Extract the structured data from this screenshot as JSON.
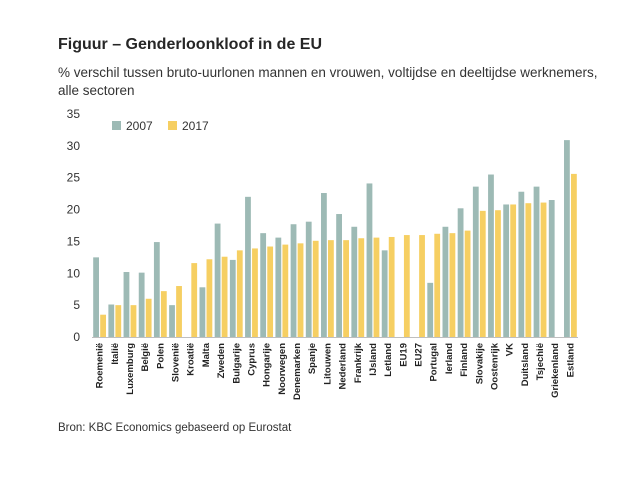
{
  "title": "Figuur – Genderloonkloof in de EU",
  "subtitle": "% verschil tussen bruto-uurlonen mannen en vrouwen, voltijdse en deeltijdse werknemers, alle sectoren",
  "source": "Bron: KBC Economics gebaseerd op Eurostat",
  "colors": {
    "s2007": "#9dbab5",
    "s2017": "#f6cf62",
    "axis": "#bfbfbf"
  },
  "chart_data": {
    "type": "bar",
    "title": "Figuur – Genderloonkloof in de EU",
    "ylim": [
      0,
      35
    ],
    "yticks": [
      0,
      5,
      10,
      15,
      20,
      25,
      30,
      35
    ],
    "grid": false,
    "legend_position": "top-left",
    "categories": [
      "Roemenië",
      "Italië",
      "Luxemburg",
      "België",
      "Polen",
      "Slovenië",
      "Kroatië",
      "Malta",
      "Zweden",
      "Bulgarije",
      "Cyprus",
      "Hongarije",
      "Noorwegen",
      "Denemarken",
      "Spanje",
      "Litouwen",
      "Nederland",
      "Frankrijk",
      "IJsland",
      "Letland",
      "EU19",
      "EU27",
      "Portugal",
      "Ierland",
      "Finland",
      "Slovakije",
      "Oostenrijk",
      "VK",
      "Duitsland",
      "Tsjechië",
      "Griekenland",
      "Estland"
    ],
    "series": [
      {
        "name": "2007",
        "values": [
          12.5,
          5.1,
          10.2,
          10.1,
          14.9,
          5.0,
          null,
          7.8,
          17.8,
          12.1,
          22.0,
          16.3,
          15.6,
          17.7,
          18.1,
          22.6,
          19.3,
          17.3,
          24.1,
          13.6,
          null,
          null,
          8.5,
          17.3,
          20.2,
          23.6,
          25.5,
          20.8,
          22.8,
          23.6,
          21.5,
          30.9
        ]
      },
      {
        "name": "2017",
        "values": [
          3.5,
          5.0,
          5.0,
          6.0,
          7.2,
          8.0,
          11.6,
          12.2,
          12.6,
          13.6,
          13.9,
          14.2,
          14.5,
          14.7,
          15.1,
          15.2,
          15.2,
          15.5,
          15.6,
          15.7,
          16.0,
          16.0,
          16.2,
          16.3,
          16.7,
          19.8,
          19.9,
          20.8,
          21.0,
          21.1,
          null,
          25.6
        ]
      }
    ]
  }
}
